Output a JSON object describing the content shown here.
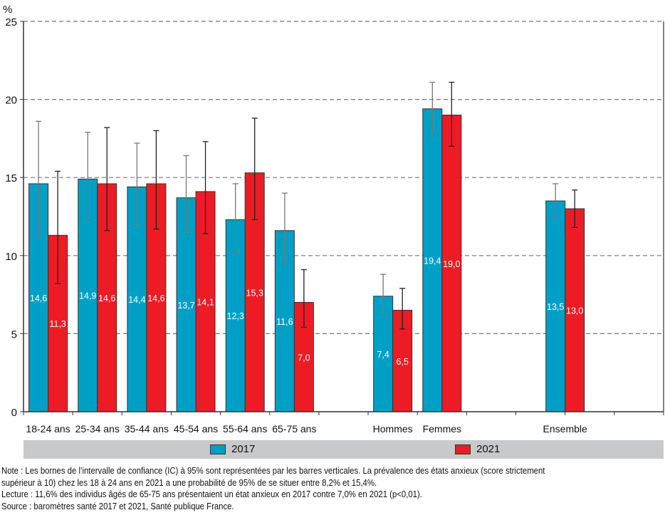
{
  "chart_data": {
    "type": "bar",
    "title": "",
    "ylabel": "%",
    "xlabel": "",
    "ylim": [
      0,
      25
    ],
    "yticks": [
      0,
      5,
      10,
      15,
      20,
      25
    ],
    "grid": true,
    "slots": [
      "18-24 ans",
      "25-34 ans",
      "35-44 ans",
      "45-54 ans",
      "55-64 ans",
      "65-75 ans",
      "",
      "Hommes",
      "Femmes",
      "",
      "Ensemble"
    ],
    "categories": [
      "18-24 ans",
      "25-34 ans",
      "35-44 ans",
      "45-54 ans",
      "55-64 ans",
      "65-75 ans",
      "Hommes",
      "Femmes",
      "Ensemble"
    ],
    "series": [
      {
        "name": "2017",
        "color": "#00a0c6",
        "values": [
          14.6,
          14.9,
          14.4,
          13.7,
          12.3,
          11.6,
          7.4,
          19.4,
          13.5
        ],
        "labels": [
          "14,6",
          "14,9",
          "14,4",
          "13,7",
          "12,3",
          "11,6",
          "7,4",
          "19,4",
          "13,5"
        ],
        "ci_low": [
          11.2,
          12.3,
          11.9,
          11.3,
          10.2,
          9.5,
          6.3,
          17.7,
          12.5
        ],
        "ci_high": [
          18.6,
          17.9,
          17.2,
          16.4,
          14.6,
          14.0,
          8.8,
          21.1,
          14.6
        ]
      },
      {
        "name": "2021",
        "color": "#ed1c24",
        "values": [
          11.3,
          14.6,
          14.6,
          14.1,
          15.3,
          7.0,
          6.5,
          19.0,
          13.0
        ],
        "labels": [
          "11,3",
          "14,6",
          "14,6",
          "14,1",
          "15,3",
          "7,0",
          "6,5",
          "19,0",
          "13,0"
        ],
        "ci_low": [
          8.2,
          11.6,
          11.7,
          11.4,
          12.3,
          5.4,
          5.3,
          17.0,
          11.8
        ],
        "ci_high": [
          15.4,
          18.2,
          18.0,
          17.3,
          18.8,
          9.1,
          7.9,
          21.1,
          14.2
        ]
      }
    ],
    "legend_position": "bottom"
  },
  "notes": {
    "note_line1": "Note : Les bornes de l’intervalle de confiance (IC) à 95% sont représentées par les barres verticales. La prévalence des états anxieux (score strictement",
    "note_line2": "supérieur à 10) chez les 18 à 24 ans en 2021 a une probabilité de 95% de se situer entre 8,2% et 15,4%.",
    "lecture": "Lecture : 11,6% des individus âgés de 65-75 ans présentaient un état anxieux en 2017 contre 7,0% en 2021 (p<0,01).",
    "source": "Source : baromètres santé 2017 et 2021, Santé publique France."
  }
}
